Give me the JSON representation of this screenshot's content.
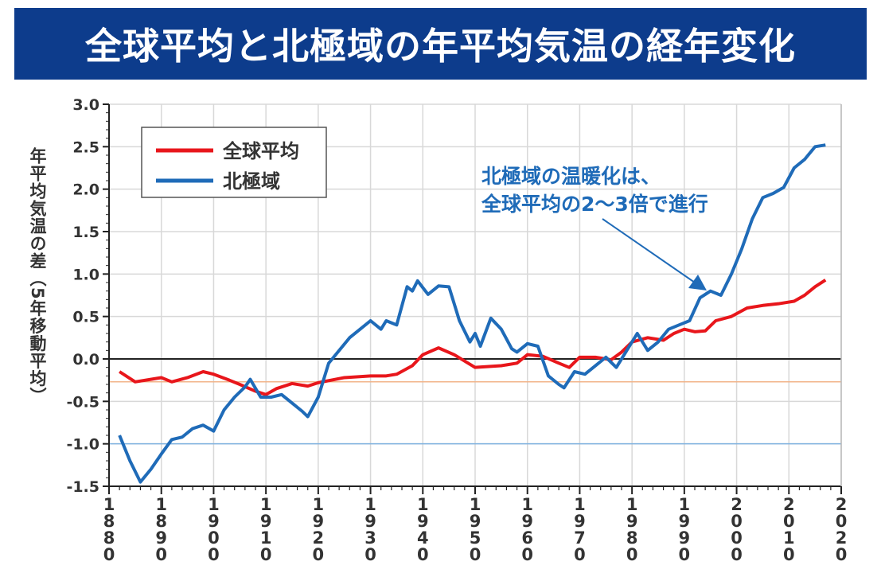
{
  "title": "全球平均と北極域の年平均気温の経年変化",
  "chart_data": {
    "type": "line",
    "title": "全球平均と北極域の年平均気温の経年変化",
    "xlabel": "",
    "ylabel": "年平均気温の差（5年移動平均）",
    "xlim": [
      1880,
      2020
    ],
    "ylim": [
      -1.5,
      3.0
    ],
    "xticks": [
      "1880",
      "1890",
      "1900",
      "1910",
      "1920",
      "1930",
      "1940",
      "1950",
      "1960",
      "1970",
      "1980",
      "1990",
      "2000",
      "2010",
      "2020"
    ],
    "yticks": [
      "3.0",
      "2.5",
      "2.0",
      "1.5",
      "1.0",
      "0.5",
      "0.0",
      "-0.5",
      "-1.0",
      "-1.5"
    ],
    "grid": true,
    "legend_position": "top-left",
    "annotation": [
      "北極域の温暖化は、",
      "全球平均の2〜3倍で進行"
    ],
    "reference_lines": [
      {
        "y": 0.0,
        "color": "#222222"
      },
      {
        "y": -0.27,
        "color": "#f2b48a"
      },
      {
        "y": -1.0,
        "color": "#7fb2e0"
      }
    ],
    "series": [
      {
        "name": "全球平均",
        "color": "#e8161b",
        "x": [
          1882,
          1885,
          1888,
          1890,
          1892,
          1895,
          1898,
          1900,
          1903,
          1905,
          1908,
          1910,
          1912,
          1915,
          1918,
          1920,
          1925,
          1930,
          1933,
          1935,
          1938,
          1940,
          1943,
          1946,
          1950,
          1955,
          1958,
          1960,
          1963,
          1966,
          1968,
          1970,
          1973,
          1976,
          1978,
          1980,
          1983,
          1986,
          1988,
          1990,
          1992,
          1994,
          1996,
          1999,
          2002,
          2005,
          2008,
          2011,
          2013,
          2015,
          2017
        ],
        "y": [
          -0.15,
          -0.27,
          -0.24,
          -0.22,
          -0.27,
          -0.22,
          -0.15,
          -0.18,
          -0.25,
          -0.3,
          -0.38,
          -0.42,
          -0.35,
          -0.29,
          -0.32,
          -0.28,
          -0.22,
          -0.2,
          -0.2,
          -0.18,
          -0.08,
          0.05,
          0.13,
          0.05,
          -0.1,
          -0.08,
          -0.05,
          0.05,
          0.03,
          -0.05,
          -0.1,
          0.02,
          0.02,
          -0.01,
          0.08,
          0.2,
          0.25,
          0.22,
          0.3,
          0.35,
          0.32,
          0.33,
          0.45,
          0.5,
          0.6,
          0.63,
          0.65,
          0.68,
          0.75,
          0.85,
          0.93
        ]
      },
      {
        "name": "北極域",
        "color": "#1f6bb8",
        "x": [
          1882,
          1884,
          1886,
          1888,
          1890,
          1892,
          1894,
          1896,
          1898,
          1900,
          1902,
          1904,
          1906,
          1907,
          1909,
          1911,
          1913,
          1915,
          1917,
          1918,
          1920,
          1922,
          1924,
          1926,
          1928,
          1930,
          1932,
          1933,
          1935,
          1937,
          1938,
          1939,
          1941,
          1943,
          1945,
          1947,
          1949,
          1950,
          1951,
          1953,
          1955,
          1957,
          1958,
          1960,
          1962,
          1964,
          1966,
          1967,
          1969,
          1971,
          1973,
          1975,
          1977,
          1979,
          1981,
          1983,
          1985,
          1987,
          1989,
          1991,
          1993,
          1995,
          1997,
          1999,
          2001,
          2003,
          2005,
          2007,
          2009,
          2011,
          2013,
          2015,
          2017
        ],
        "y": [
          -0.9,
          -1.2,
          -1.45,
          -1.3,
          -1.12,
          -0.95,
          -0.92,
          -0.82,
          -0.78,
          -0.85,
          -0.6,
          -0.45,
          -0.33,
          -0.24,
          -0.45,
          -0.45,
          -0.42,
          -0.52,
          -0.62,
          -0.68,
          -0.45,
          -0.05,
          0.1,
          0.25,
          0.35,
          0.45,
          0.35,
          0.45,
          0.4,
          0.85,
          0.8,
          0.92,
          0.76,
          0.86,
          0.85,
          0.45,
          0.2,
          0.3,
          0.15,
          0.48,
          0.35,
          0.12,
          0.08,
          0.18,
          0.15,
          -0.2,
          -0.3,
          -0.34,
          -0.15,
          -0.18,
          -0.08,
          0.02,
          -0.1,
          0.1,
          0.3,
          0.1,
          0.2,
          0.35,
          0.4,
          0.45,
          0.72,
          0.8,
          0.75,
          1.0,
          1.3,
          1.65,
          1.9,
          1.95,
          2.02,
          2.25,
          2.35,
          2.5,
          2.52
        ]
      }
    ]
  }
}
